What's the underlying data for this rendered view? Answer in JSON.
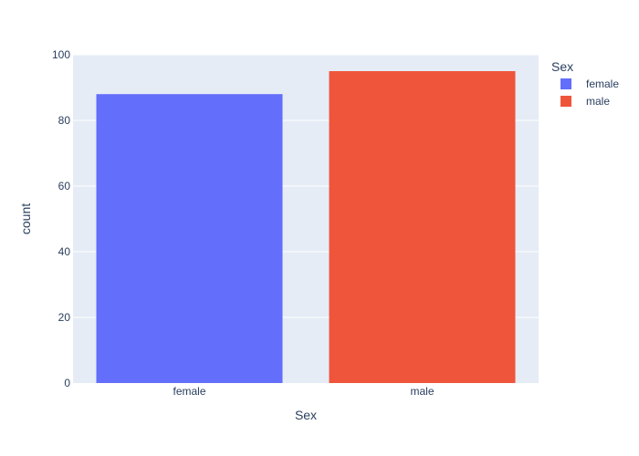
{
  "chart_data": {
    "type": "bar",
    "categories": [
      "female",
      "male"
    ],
    "series": [
      {
        "name": "female",
        "values": [
          88,
          null
        ],
        "color": "#636efa"
      },
      {
        "name": "male",
        "values": [
          null,
          95
        ],
        "color": "#ef553b"
      }
    ],
    "xlabel": "Sex",
    "ylabel": "count",
    "ylim": [
      0,
      100
    ],
    "yticks": [
      0,
      20,
      40,
      60,
      80,
      100
    ],
    "grid": true,
    "legend": {
      "title": "Sex",
      "placement": "top-right",
      "entries": [
        "female",
        "male"
      ]
    },
    "colors": {
      "plot_background": "#e5ecf6",
      "gridline": "#ffffff",
      "text": "#2a3f5f"
    }
  }
}
